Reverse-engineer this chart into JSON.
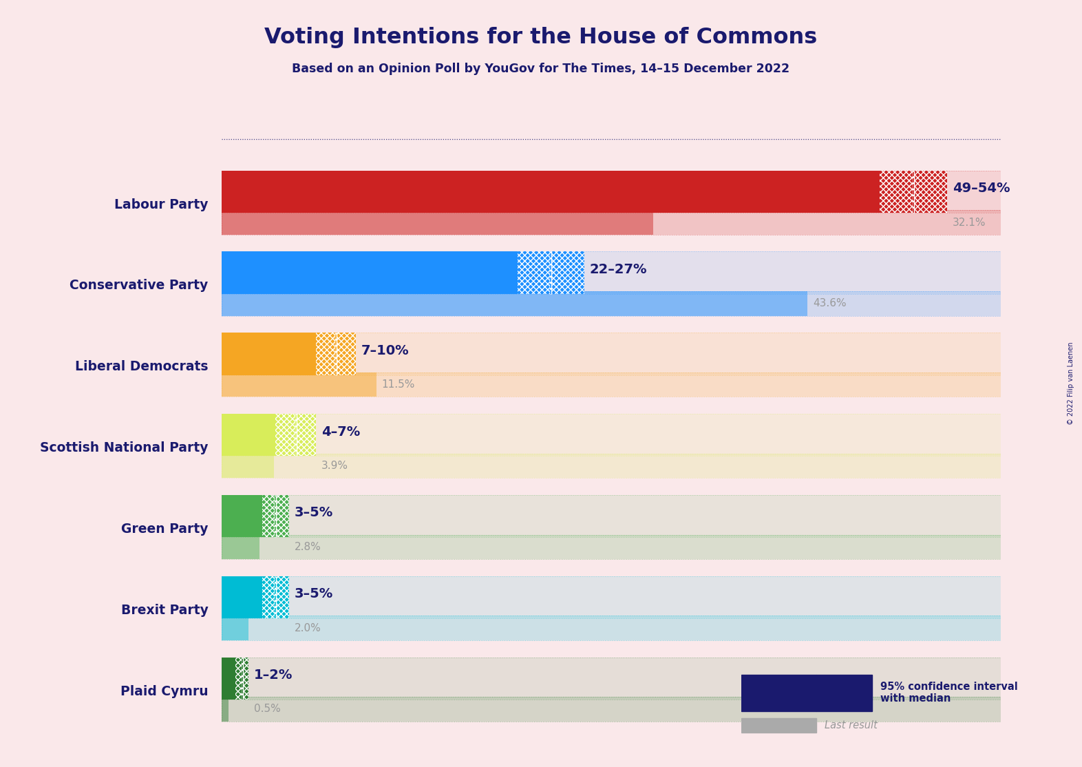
{
  "title": "Voting Intentions for the House of Commons",
  "subtitle": "Based on an Opinion Poll by YouGov for The Times, 14–15 December 2022",
  "copyright": "© 2022 Filip van Laenen",
  "background_color": "#fae8ea",
  "title_color": "#1a1a6e",
  "subtitle_color": "#1a1a6e",
  "parties": [
    {
      "name": "Labour Party",
      "ci_low": 49,
      "ci_median": 51.5,
      "ci_high": 54,
      "last_result": 32.1,
      "color": "#cc2222",
      "label_ci": "49–54%",
      "label_last": "32.1%"
    },
    {
      "name": "Conservative Party",
      "ci_low": 22,
      "ci_median": 24.5,
      "ci_high": 27,
      "last_result": 43.6,
      "color": "#1e90ff",
      "label_ci": "22–27%",
      "label_last": "43.6%"
    },
    {
      "name": "Liberal Democrats",
      "ci_low": 7,
      "ci_median": 8.5,
      "ci_high": 10,
      "last_result": 11.5,
      "color": "#f5a623",
      "label_ci": "7–10%",
      "label_last": "11.5%"
    },
    {
      "name": "Scottish National Party",
      "ci_low": 4,
      "ci_median": 5.5,
      "ci_high": 7,
      "last_result": 3.9,
      "color": "#d8ed5a",
      "label_ci": "4–7%",
      "label_last": "3.9%"
    },
    {
      "name": "Green Party",
      "ci_low": 3,
      "ci_median": 4,
      "ci_high": 5,
      "last_result": 2.8,
      "color": "#4caf50",
      "label_ci": "3–5%",
      "label_last": "2.8%"
    },
    {
      "name": "Brexit Party",
      "ci_low": 3,
      "ci_median": 4,
      "ci_high": 5,
      "last_result": 2.0,
      "color": "#00bcd4",
      "label_ci": "3–5%",
      "label_last": "2.0%"
    },
    {
      "name": "Plaid Cymru",
      "ci_low": 1,
      "ci_median": 1.5,
      "ci_high": 2,
      "last_result": 0.5,
      "color": "#2e7d32",
      "label_ci": "1–2%",
      "label_last": "0.5%"
    }
  ],
  "xlim_max": 58,
  "label_color_ci": "#1a1a6e",
  "label_color_last": "#999999",
  "legend_ci_color": "#1a1a6e",
  "legend_last_color": "#aaaaaa"
}
